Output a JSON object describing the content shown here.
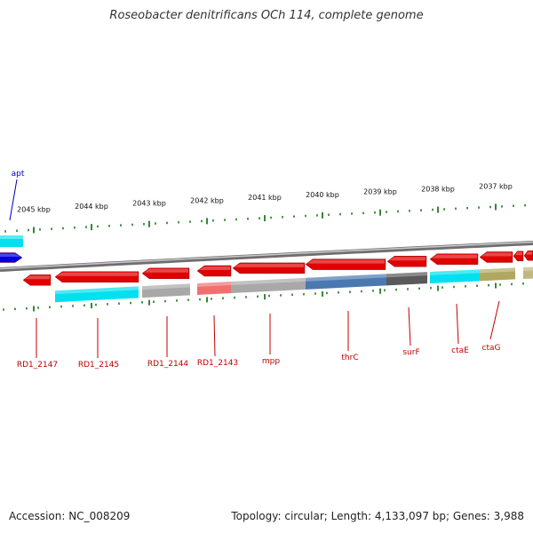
{
  "header": {
    "title": "Roseobacter denitrificans OCh 114, complete genome"
  },
  "footer": {
    "accession": "Accession: NC_008209",
    "summary": "Topology: circular; Length: 4,133,097 bp; Genes: 3,988"
  },
  "colors": {
    "backbone": "#8f8f8f",
    "tick": "#1f7a1f",
    "gene_forward": "#0000e0",
    "gene_reverse": "#e00000",
    "label_forward": "#0000c0",
    "label_reverse": "#c00000",
    "cog_cyan": "#00e0f0",
    "cog_gray": "#a8a8a8",
    "cog_salmon": "#f07070",
    "cog_blue": "#4a78b0",
    "cog_dark": "#5a5a5a",
    "cog_olive": "#b0a860",
    "cog_lightolive": "#c0b880"
  },
  "scale": {
    "ticks": [
      {
        "label": "2045 kbp"
      },
      {
        "label": "2044 kbp"
      },
      {
        "label": "2043 kbp"
      },
      {
        "label": "2042 kbp"
      },
      {
        "label": "2041 kbp"
      },
      {
        "label": "2040 kbp"
      },
      {
        "label": "2039 kbp"
      },
      {
        "label": "2038 kbp"
      },
      {
        "label": "2037 kbp"
      }
    ]
  },
  "genes": [
    {
      "name": "apt",
      "strand": "forward"
    },
    {
      "name": "RD1_2147",
      "strand": "reverse"
    },
    {
      "name": "RD1_2145",
      "strand": "reverse"
    },
    {
      "name": "RD1_2144",
      "strand": "reverse"
    },
    {
      "name": "RD1_2143",
      "strand": "reverse"
    },
    {
      "name": "mpp",
      "strand": "reverse"
    },
    {
      "name": "thrC",
      "strand": "reverse"
    },
    {
      "name": "surF",
      "strand": "reverse"
    },
    {
      "name": "ctaE",
      "strand": "reverse"
    },
    {
      "name": "ctaG",
      "strand": "reverse"
    }
  ]
}
